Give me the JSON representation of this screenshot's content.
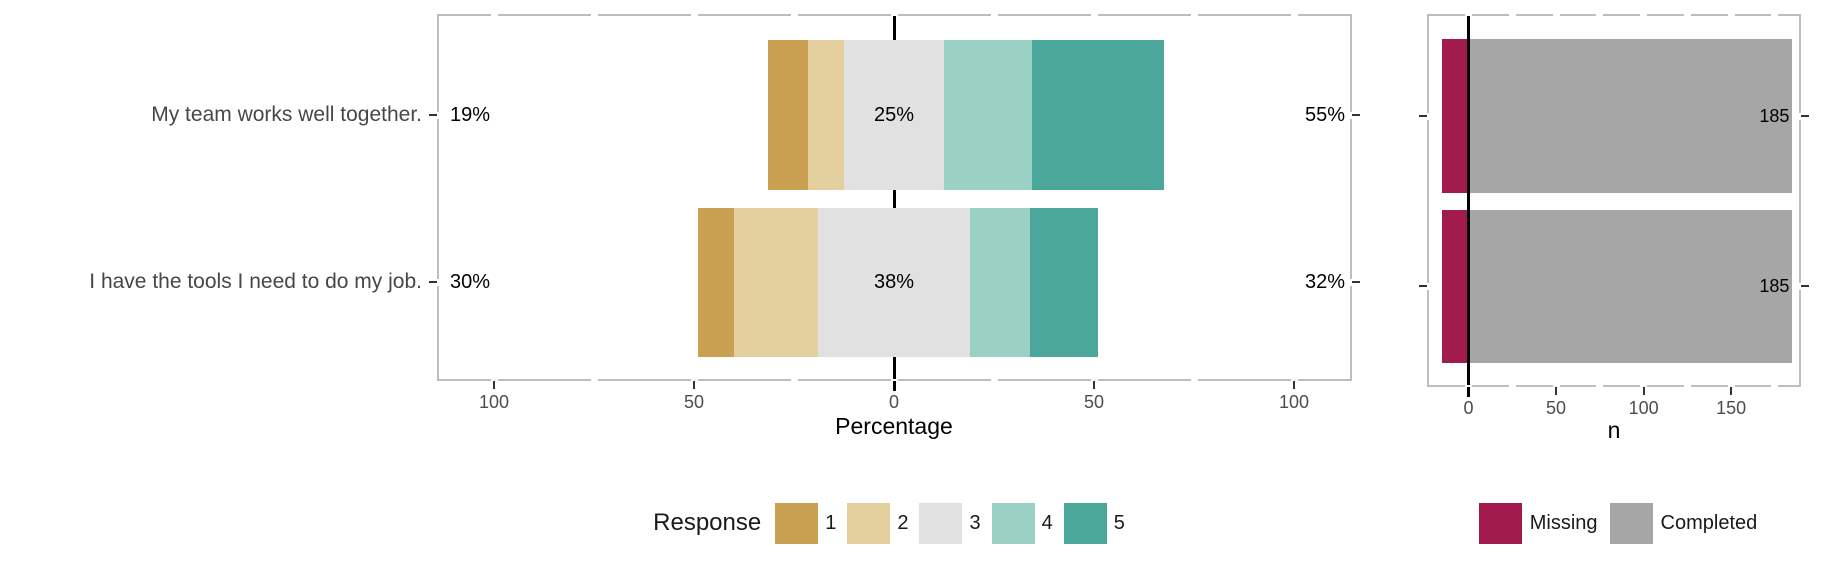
{
  "colors": {
    "response": {
      "1": "#C9A052",
      "2": "#E4CF9E",
      "3": "#E1E1E1",
      "4": "#9BD0C5",
      "5": "#4AA79A"
    },
    "missing": "#A11C4D",
    "completed": "#A6A6A6",
    "panel_border": "#BEBEBE",
    "axis_tick": "#333333",
    "zero_line": "#000000",
    "axis_text": "#4D4D4D",
    "question_text": "#474747",
    "label_text": "#000000"
  },
  "chart_data": [
    {
      "type": "bar",
      "subtype": "diverging-stacked-likert",
      "xlabel": "Percentage",
      "x_tick_values": [
        -100,
        -50,
        0,
        50,
        100
      ],
      "x_tick_labels": [
        "100",
        "50",
        "0",
        "50",
        "100"
      ],
      "x_range": [
        -114,
        114
      ],
      "response_levels": [
        "1",
        "2",
        "3",
        "4",
        "5"
      ],
      "neutral_level": "3",
      "rows": [
        {
          "question": "My team works well together.",
          "segments_pct": {
            "1": 10,
            "2": 9,
            "3": 25,
            "4": 22,
            "5": 33
          },
          "low_label": "19%",
          "neutral_label": "25%",
          "high_label": "55%"
        },
        {
          "question": "I have the tools I need to do my job.",
          "segments_pct": {
            "1": 9,
            "2": 21,
            "3": 38,
            "4": 15,
            "5": 17
          },
          "low_label": "30%",
          "neutral_label": "38%",
          "high_label": "32%"
        }
      ],
      "legend": {
        "title": "Response",
        "entries": [
          "1",
          "2",
          "3",
          "4",
          "5"
        ]
      }
    },
    {
      "type": "bar",
      "subtype": "stacked-count",
      "xlabel": "n",
      "x_tick_values": [
        0,
        50,
        100,
        150
      ],
      "x_tick_labels": [
        "0",
        "50",
        "100",
        "150"
      ],
      "x_range": [
        -23,
        190
      ],
      "rows": [
        {
          "missing": 15,
          "completed": 185,
          "count_label": "185"
        },
        {
          "missing": 15,
          "completed": 185,
          "count_label": "185"
        }
      ],
      "legend": {
        "entries": [
          {
            "key": "missing",
            "label": "Missing"
          },
          {
            "key": "completed",
            "label": "Completed"
          }
        ]
      }
    }
  ]
}
